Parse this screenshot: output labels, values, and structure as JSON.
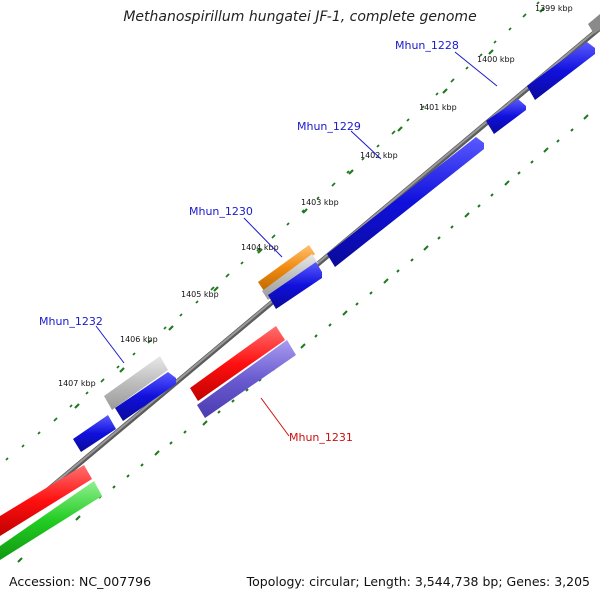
{
  "title": "Methanospirillum hungatei JF-1, complete genome",
  "accession": "Accession: NC_007796",
  "summary": "Topology: circular; Length: 3,544,738 bp; Genes: 3,205",
  "colors": {
    "backbone": "#8c8c8c",
    "tick": "#1f7a1f",
    "blue": "#1010dd",
    "gray": "#b8b8b8",
    "orange": "#f08a10",
    "red": "#ff1010",
    "purple": "#6a5cd0",
    "green": "#22cc22",
    "forward_label": "#1a1acc",
    "reverse_label": "#cc1010"
  },
  "tick_labels": [
    "1399 kbp",
    "1400 kbp",
    "1401 kbp",
    "1402 kbp",
    "1403 kbp",
    "1404 kbp",
    "1405 kbp",
    "1406 kbp",
    "1407 kbp"
  ],
  "gene_labels": [
    {
      "text": "Mhun_1228",
      "strand": "forward"
    },
    {
      "text": "Mhun_1229",
      "strand": "forward"
    },
    {
      "text": "Mhun_1230",
      "strand": "forward"
    },
    {
      "text": "Mhun_1232",
      "strand": "forward"
    },
    {
      "text": "Mhun_1231",
      "strand": "reverse"
    }
  ]
}
